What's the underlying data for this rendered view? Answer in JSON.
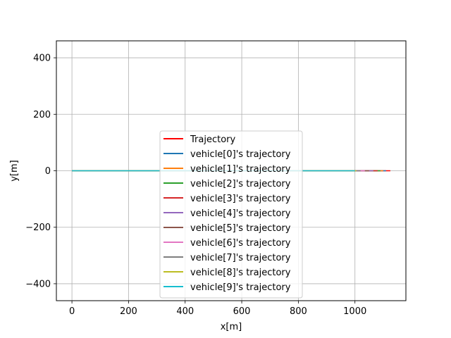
{
  "chart_data": {
    "type": "line",
    "xlabel": "x[m]",
    "ylabel": "y[m]",
    "xlim": [
      -55,
      1180
    ],
    "ylim": [
      -460,
      460
    ],
    "xticks": [
      0,
      200,
      400,
      600,
      800,
      1000
    ],
    "yticks": [
      -400,
      -200,
      0,
      200,
      400
    ],
    "xtick_labels": [
      "0",
      "200",
      "400",
      "600",
      "800",
      "1000"
    ],
    "ytick_labels": [
      "−400",
      "−200",
      "0",
      "200",
      "400"
    ],
    "grid": true,
    "legend_position": "lower center",
    "series": [
      {
        "name": "Trajectory",
        "color": "#ff0000",
        "x": [
          0,
          1125
        ],
        "y": [
          0,
          0
        ]
      },
      {
        "name": "vehicle[0]'s trajectory",
        "color": "#1f77b4",
        "x": [
          0,
          1110
        ],
        "y": [
          0,
          0
        ]
      },
      {
        "name": "vehicle[1]'s trajectory",
        "color": "#ff7f0e",
        "x": [
          0,
          1100
        ],
        "y": [
          0,
          0
        ]
      },
      {
        "name": "vehicle[2]'s trajectory",
        "color": "#2ca02c",
        "x": [
          0,
          1090
        ],
        "y": [
          0,
          0
        ]
      },
      {
        "name": "vehicle[3]'s trajectory",
        "color": "#d62728",
        "x": [
          0,
          1080
        ],
        "y": [
          0,
          0
        ]
      },
      {
        "name": "vehicle[4]'s trajectory",
        "color": "#9467bd",
        "x": [
          0,
          1065
        ],
        "y": [
          0,
          0
        ]
      },
      {
        "name": "vehicle[5]'s trajectory",
        "color": "#8c564b",
        "x": [
          0,
          1050
        ],
        "y": [
          0,
          0
        ]
      },
      {
        "name": "vehicle[6]'s trajectory",
        "color": "#e377c2",
        "x": [
          0,
          1035
        ],
        "y": [
          0,
          0
        ]
      },
      {
        "name": "vehicle[7]'s trajectory",
        "color": "#7f7f7f",
        "x": [
          0,
          1020
        ],
        "y": [
          0,
          0
        ]
      },
      {
        "name": "vehicle[8]'s trajectory",
        "color": "#bcbd22",
        "x": [
          0,
          1005
        ],
        "y": [
          0,
          0
        ]
      },
      {
        "name": "vehicle[9]'s trajectory",
        "color": "#17becf",
        "x": [
          0,
          1000
        ],
        "y": [
          0,
          0
        ]
      }
    ]
  }
}
